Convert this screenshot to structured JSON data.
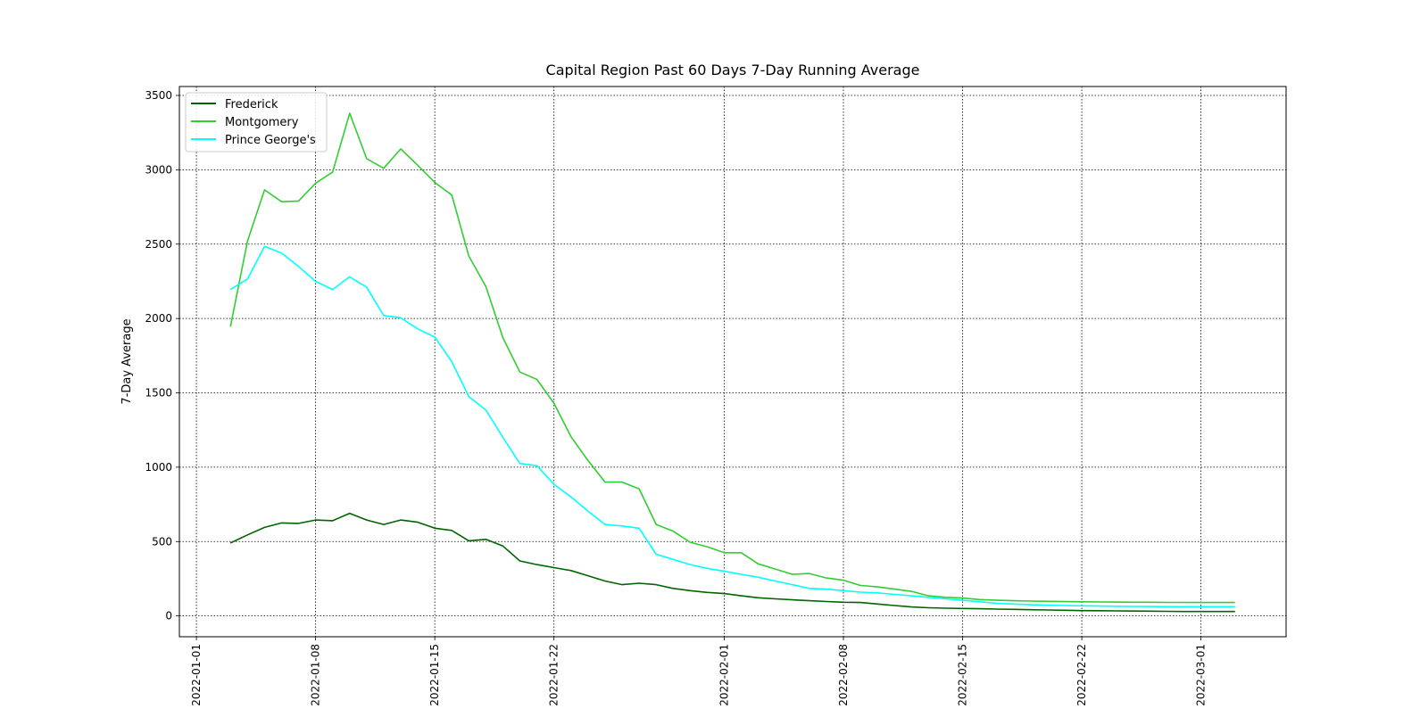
{
  "chart_data": {
    "type": "line",
    "title": "Capital Region Past 60 Days 7-Day Running Average",
    "xlabel": "",
    "ylabel": "7-Day Average",
    "x_ticks": [
      "2022-01-01",
      "2022-01-08",
      "2022-01-15",
      "2022-01-22",
      "2022-02-01",
      "2022-02-08",
      "2022-02-15",
      "2022-02-22",
      "2022-03-01"
    ],
    "y_ticks": [
      "0",
      "500",
      "1000",
      "1500",
      "2000",
      "2500",
      "3000",
      "3500"
    ],
    "xlim": [
      "2021-12-31",
      "2022-03-06"
    ],
    "ylim": [
      -140,
      3560
    ],
    "grid": true,
    "legend_position": "top-left",
    "x": [
      "2022-01-03",
      "2022-01-04",
      "2022-01-05",
      "2022-01-06",
      "2022-01-07",
      "2022-01-08",
      "2022-01-09",
      "2022-01-10",
      "2022-01-11",
      "2022-01-12",
      "2022-01-13",
      "2022-01-14",
      "2022-01-15",
      "2022-01-16",
      "2022-01-17",
      "2022-01-18",
      "2022-01-19",
      "2022-01-20",
      "2022-01-21",
      "2022-01-22",
      "2022-01-23",
      "2022-01-24",
      "2022-01-25",
      "2022-01-26",
      "2022-01-27",
      "2022-01-28",
      "2022-01-29",
      "2022-01-30",
      "2022-01-31",
      "2022-02-01",
      "2022-02-02",
      "2022-02-03",
      "2022-02-04",
      "2022-02-05",
      "2022-02-06",
      "2022-02-07",
      "2022-02-08",
      "2022-02-09",
      "2022-02-10",
      "2022-02-11",
      "2022-02-12",
      "2022-02-13",
      "2022-02-14",
      "2022-02-15",
      "2022-02-16",
      "2022-02-17",
      "2022-02-18",
      "2022-02-19",
      "2022-02-20",
      "2022-02-21",
      "2022-02-22",
      "2022-02-23",
      "2022-02-24",
      "2022-02-25",
      "2022-02-26",
      "2022-02-27",
      "2022-02-28",
      "2022-03-01",
      "2022-03-02",
      "2022-03-03"
    ],
    "series": [
      {
        "name": "Frederick",
        "color": "#006400",
        "values": [
          490,
          545,
          595,
          625,
          622,
          645,
          640,
          690,
          645,
          615,
          645,
          630,
          590,
          575,
          505,
          515,
          470,
          370,
          345,
          325,
          305,
          270,
          235,
          210,
          220,
          210,
          185,
          170,
          158,
          150,
          135,
          122,
          115,
          108,
          102,
          97,
          92,
          90,
          80,
          70,
          60,
          55,
          52,
          50,
          48,
          46,
          44,
          42,
          40,
          38,
          36,
          35,
          34,
          33,
          32,
          31,
          30,
          30,
          30,
          30
        ]
      },
      {
        "name": "Montgomery",
        "color": "#32cd32",
        "values": [
          1945,
          2520,
          2865,
          2785,
          2790,
          2910,
          2985,
          3380,
          3075,
          3010,
          3140,
          3030,
          2915,
          2830,
          2420,
          2215,
          1870,
          1640,
          1590,
          1430,
          1205,
          1045,
          900,
          900,
          855,
          615,
          570,
          495,
          465,
          425,
          425,
          350,
          315,
          280,
          285,
          255,
          240,
          205,
          195,
          180,
          165,
          135,
          125,
          120,
          110,
          105,
          102,
          100,
          98,
          96,
          95,
          94,
          93,
          92,
          92,
          91,
          91,
          90,
          90,
          90
        ]
      },
      {
        "name": "Prince George's",
        "color": "#00ffff",
        "values": [
          2195,
          2265,
          2485,
          2440,
          2350,
          2250,
          2195,
          2280,
          2210,
          2020,
          2005,
          1930,
          1875,
          1710,
          1475,
          1385,
          1200,
          1025,
          1010,
          885,
          800,
          705,
          615,
          605,
          590,
          415,
          380,
          345,
          320,
          300,
          280,
          260,
          235,
          210,
          185,
          180,
          170,
          160,
          155,
          145,
          135,
          125,
          115,
          105,
          95,
          85,
          80,
          75,
          72,
          70,
          68,
          66,
          65,
          64,
          63,
          62,
          62,
          62,
          62,
          62
        ]
      }
    ]
  }
}
